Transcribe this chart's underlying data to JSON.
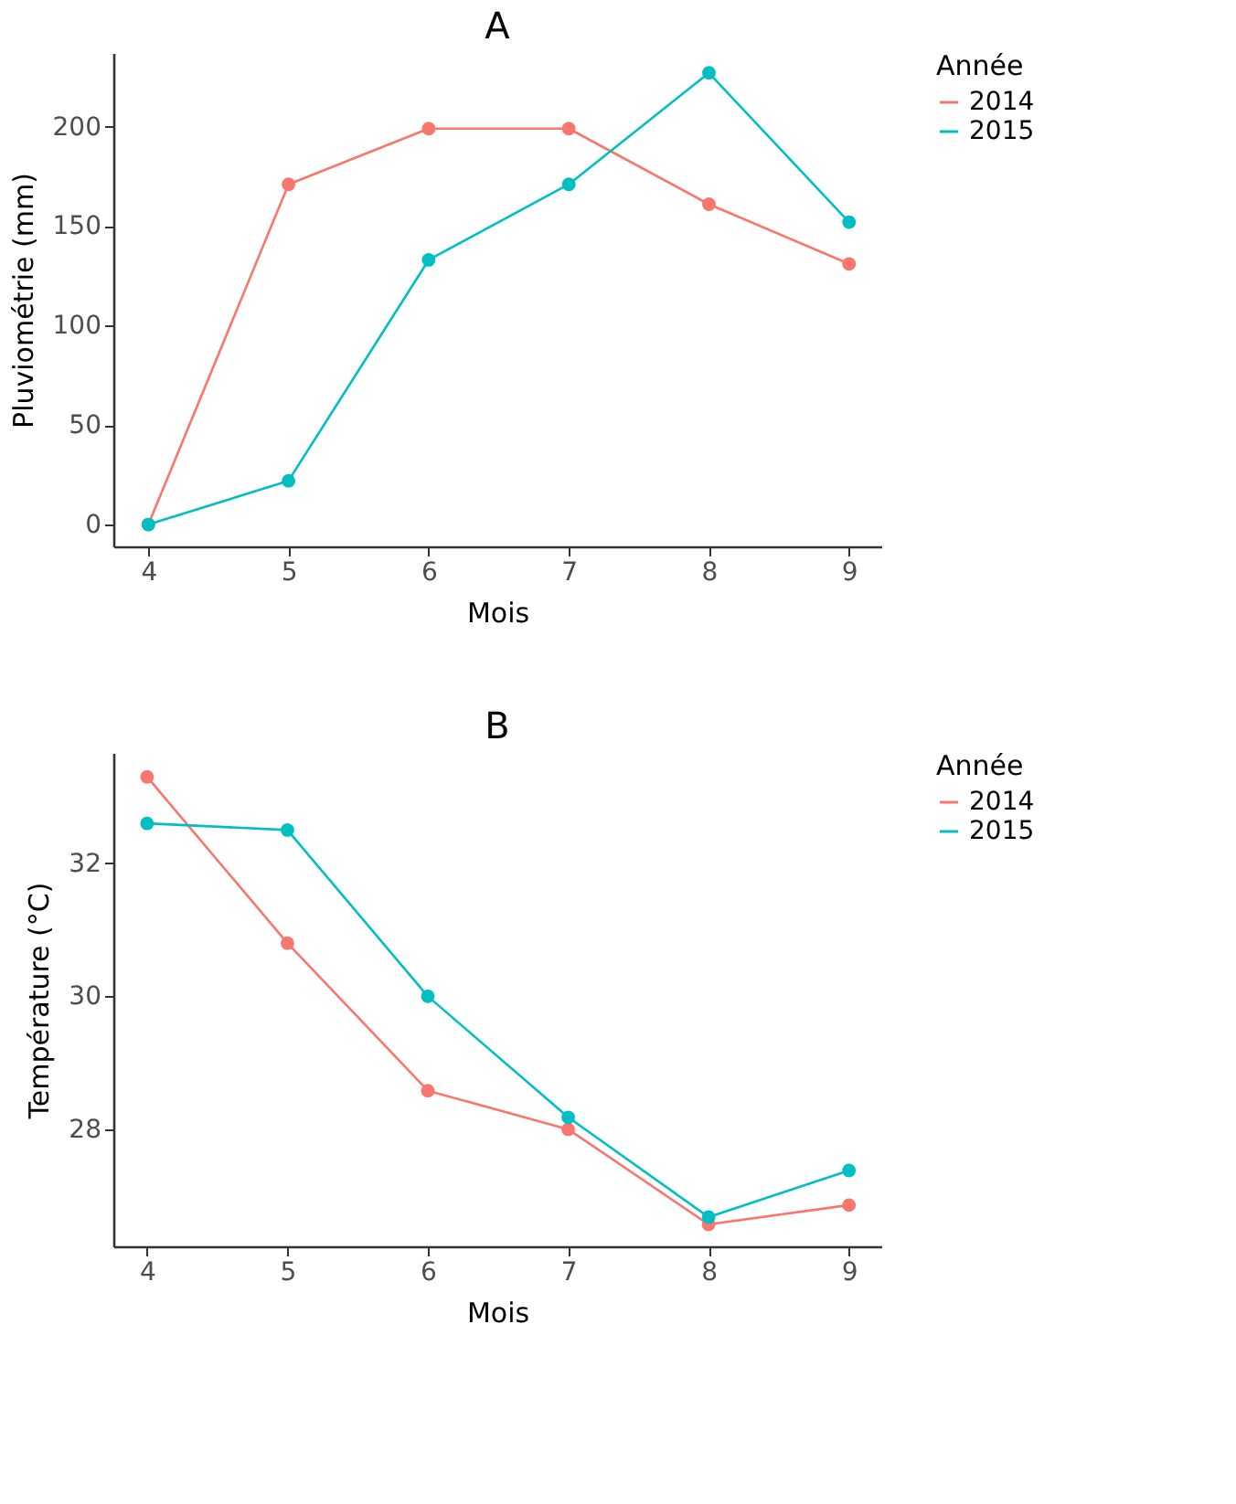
{
  "chart_data": [
    {
      "type": "line",
      "title": "A",
      "xlabel": "Mois",
      "ylabel": "Pluviométrie (mm)",
      "legend_title": "Année",
      "x": [
        4,
        5,
        6,
        7,
        8,
        9
      ],
      "series": [
        {
          "name": "2014",
          "color": "#f8766d",
          "values": [
            0,
            171,
            199,
            199,
            161,
            131
          ]
        },
        {
          "name": "2015",
          "color": "#00bfc4",
          "values": [
            0,
            22,
            133,
            171,
            227,
            152
          ]
        }
      ],
      "xlim": [
        3.75,
        9.23
      ],
      "xticks": [
        4,
        5,
        6,
        7,
        8,
        9
      ],
      "ylim": [
        -11,
        237
      ],
      "yticks": [
        0,
        50,
        100,
        150,
        200
      ],
      "grid": false,
      "legend": "right",
      "marker": "circle",
      "line_style": "solid"
    },
    {
      "type": "line",
      "title": "B",
      "xlabel": "Mois",
      "ylabel": "Température (°C)",
      "legend_title": "Année",
      "x": [
        4,
        5,
        6,
        7,
        8,
        9
      ],
      "series": [
        {
          "name": "2014",
          "color": "#f8766d",
          "values": [
            33.3,
            30.8,
            28.58,
            28.0,
            26.57,
            26.86
          ]
        },
        {
          "name": "2015",
          "color": "#00bfc4",
          "values": [
            32.6,
            32.5,
            30.0,
            28.18,
            26.68,
            27.38
          ]
        }
      ],
      "xlim": [
        3.76,
        9.23
      ],
      "xticks": [
        4,
        5,
        6,
        7,
        8,
        9
      ],
      "ylim": [
        26.24,
        33.66
      ],
      "yticks": [
        28,
        30,
        32
      ],
      "grid": false,
      "legend": "right",
      "marker": "circle",
      "line_style": "solid"
    }
  ]
}
